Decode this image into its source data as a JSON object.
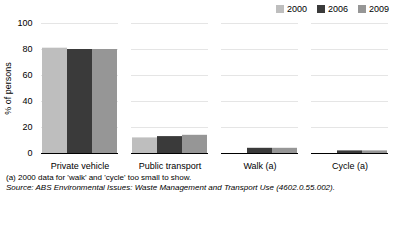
{
  "chart_data": {
    "type": "bar",
    "categories": [
      "Private vehicle",
      "Public transport",
      "Walk (a)",
      "Cycle (a)"
    ],
    "series": [
      {
        "name": "2000",
        "color": "#bebebe",
        "values": [
          81,
          12,
          0,
          0
        ]
      },
      {
        "name": "2006",
        "color": "#3a3a3a",
        "values": [
          80,
          13,
          4,
          2
        ]
      },
      {
        "name": "2009",
        "color": "#969696",
        "values": [
          80,
          14,
          4,
          2
        ]
      }
    ],
    "ylabel": "% of persons",
    "ylim": [
      0,
      100
    ],
    "yticks": [
      0,
      20,
      40,
      60,
      80,
      100
    ],
    "grid": true,
    "legend": "upper right",
    "annotations": [
      "(a) 2000 data for 'walk' and 'cycle' too small to show.",
      "Source: ABS Environmental Issues: Waste Management and Transport Use (4602.0.55.002)."
    ]
  }
}
